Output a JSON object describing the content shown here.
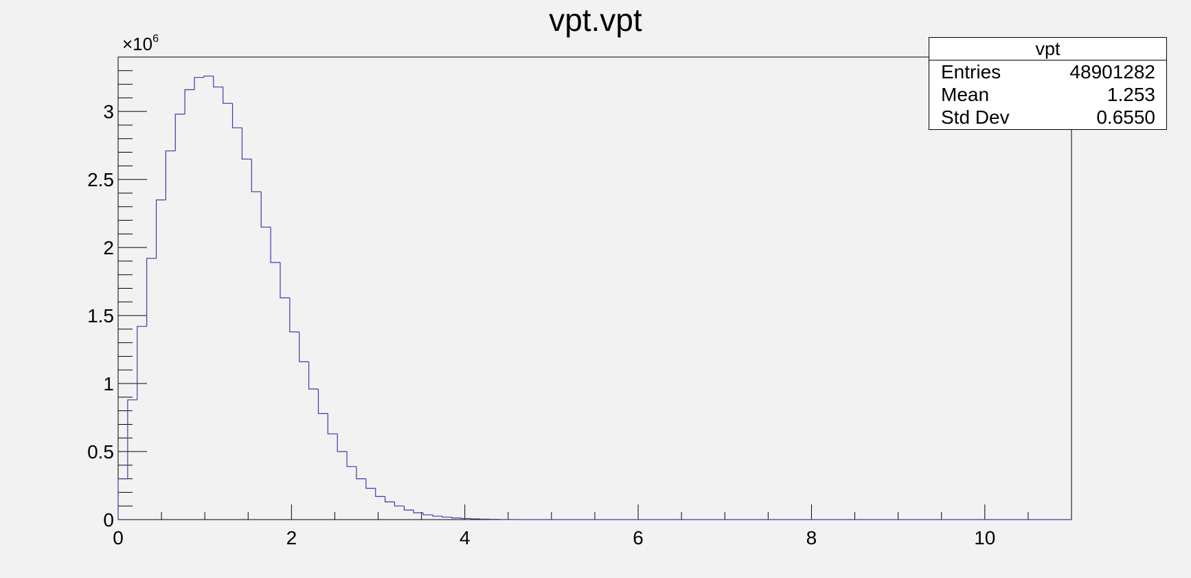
{
  "chart_data": {
    "type": "bar",
    "title": "vpt.vpt",
    "xlabel": "",
    "ylabel": "",
    "xlim": [
      0,
      11
    ],
    "ylim": [
      0,
      3.4
    ],
    "y_multiplier": "×10",
    "y_multiplier_exponent": "6",
    "line_color": "#3a3aaa",
    "x_ticks": [
      "0",
      "2",
      "4",
      "6",
      "8",
      "10"
    ],
    "y_ticks": [
      "0",
      "0.5",
      "1",
      "1.5",
      "2",
      "2.5",
      "3"
    ],
    "bin_width": 0.11,
    "x_start": 0,
    "values": [
      0.3,
      0.88,
      1.42,
      1.92,
      2.35,
      2.71,
      2.98,
      3.16,
      3.25,
      3.26,
      3.18,
      3.06,
      2.88,
      2.65,
      2.41,
      2.15,
      1.89,
      1.63,
      1.38,
      1.16,
      0.96,
      0.78,
      0.63,
      0.5,
      0.39,
      0.3,
      0.23,
      0.17,
      0.13,
      0.1,
      0.07,
      0.05,
      0.035,
      0.025,
      0.018,
      0.012,
      0.008,
      0.005,
      0.003,
      0.002,
      0.001,
      0.0005
    ]
  },
  "stats": {
    "name": "vpt",
    "rows": [
      {
        "label": "Entries",
        "value": "48901282"
      },
      {
        "label": "Mean",
        "value": "1.253"
      },
      {
        "label": "Std Dev",
        "value": "0.6550"
      }
    ]
  }
}
